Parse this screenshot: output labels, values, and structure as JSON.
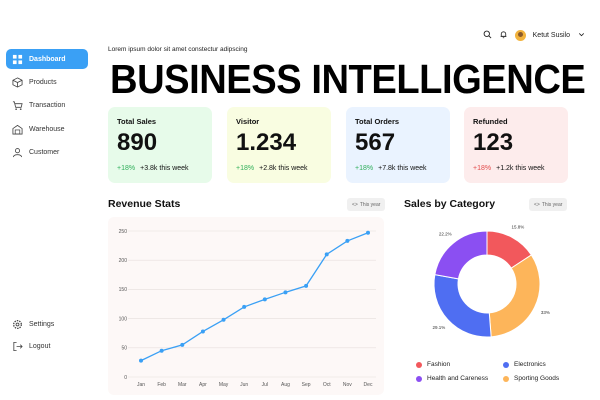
{
  "sidebar": {
    "items": [
      {
        "label": "Dashboard",
        "icon": "dashboard-icon",
        "active": true
      },
      {
        "label": "Products",
        "icon": "box-icon"
      },
      {
        "label": "Transaction",
        "icon": "cart-icon"
      },
      {
        "label": "Warehouse",
        "icon": "warehouse-icon"
      },
      {
        "label": "Customer",
        "icon": "user-icon"
      }
    ],
    "bottom": [
      {
        "label": "Settings",
        "icon": "gear-icon"
      },
      {
        "label": "Logout",
        "icon": "logout-icon"
      }
    ]
  },
  "header": {
    "user_name": "Ketut Susilo",
    "subtitle": "Lorem ipsum dolor sit amet constectur adipscing",
    "title": "BUSINESS INTELLIGENCE"
  },
  "cards": [
    {
      "label": "Total Sales",
      "value": "890",
      "pct": "+18%",
      "delta": "+3.8k this week",
      "bg": "#e7fbea",
      "trend": "up"
    },
    {
      "label": "Visitor",
      "value": "1.234",
      "pct": "+18%",
      "delta": "+2.8k this week",
      "bg": "#f9fde1",
      "trend": "up"
    },
    {
      "label": "Total Orders",
      "value": "567",
      "pct": "+18%",
      "delta": "+7.8k this week",
      "bg": "#eaf3ff",
      "trend": "up"
    },
    {
      "label": "Refunded",
      "value": "123",
      "pct": "+18%",
      "delta": "+1.2k this week",
      "bg": "#fdecec",
      "trend": "down"
    }
  ],
  "revenue": {
    "title": "Revenue Stats",
    "period": "This year"
  },
  "category": {
    "title": "Sales by Category",
    "period": "This year"
  },
  "chart_data": [
    {
      "type": "line",
      "title": "Revenue Stats",
      "x": [
        "Jan",
        "Feb",
        "Mar",
        "Apr",
        "May",
        "Jun",
        "Jul",
        "Aug",
        "Sep",
        "Oct",
        "Nov",
        "Dec"
      ],
      "yticks": [
        0,
        50,
        100,
        150,
        200,
        250
      ],
      "ylim": [
        0,
        250
      ],
      "series": [
        {
          "values": [
            28,
            45,
            55,
            78,
            98,
            120,
            133,
            145,
            156,
            210,
            233,
            247
          ],
          "color": "#3aa0f5"
        }
      ],
      "grid": true
    },
    {
      "type": "pie",
      "title": "Sales by Category",
      "slices": [
        {
          "label": "Fashion",
          "value": 15.8,
          "text": "15.8%",
          "color": "#f2585c"
        },
        {
          "label": "Sporting Goods",
          "value": 33,
          "text": "33%",
          "color": "#fdb55a"
        },
        {
          "label": "Electronics",
          "value": 29.1,
          "text": "29.1%",
          "color": "#4f6ef2"
        },
        {
          "label": "Health and Careness",
          "value": 22.2,
          "text": "22.2%",
          "color": "#8b4ff2"
        }
      ],
      "legend": [
        "Fashion",
        "Electronics",
        "Health and Careness",
        "Sporting Goods"
      ],
      "legend_placement": "bottom"
    }
  ]
}
